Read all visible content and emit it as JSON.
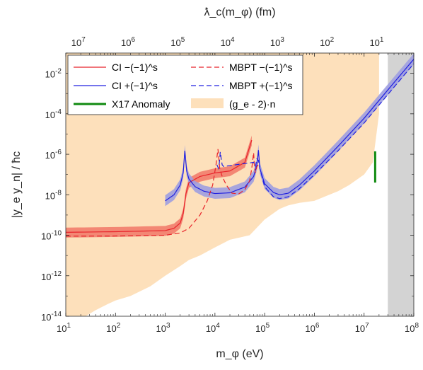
{
  "chart_data": {
    "type": "line",
    "xlabel": "m_φ (eV)",
    "ylabel": "|y_e y_n| / ħc",
    "top_xlabel": "ƛ_c(m_φ) (fm)",
    "x_scale": "log",
    "y_scale": "log",
    "xlim": [
      10,
      100000000
    ],
    "ylim": [
      1e-14,
      0.1
    ],
    "x_ticks": [
      "10^1",
      "10^2",
      "10^3",
      "10^4",
      "10^5",
      "10^6",
      "10^7",
      "10^8"
    ],
    "y_ticks": [
      "10^-14",
      "10^-12",
      "10^-10",
      "10^-8",
      "10^-6",
      "10^-4",
      "10^-2"
    ],
    "top_ticks": [
      "10^7",
      "10^6",
      "10^5",
      "10^4",
      "10^3",
      "10^2",
      "10^1"
    ],
    "legend_position": "top-left",
    "grid": false,
    "legend": {
      "ci_minus": "CI −(−1)^s",
      "ci_plus": "CI +(−1)^s",
      "x17": "X17 Anomaly",
      "mbpt_minus": "MBPT −(−1)^s",
      "mbpt_plus": "MBPT +(−1)^s",
      "ge2": "(g_e - 2)·n"
    },
    "colors": {
      "ci_minus": "#e8232a",
      "ci_plus": "#2020e0",
      "ci_minus_band": "#f27d6d",
      "ci_plus_band": "#9f9fe0",
      "x17": "#108a10",
      "ge2": "#fde0bb",
      "excluded_region": "#d3d3d3"
    },
    "series": [
      {
        "name": "CI −(−1)^s",
        "style": "solid",
        "x": [
          10,
          100,
          1000,
          1500,
          2000,
          2300,
          2500,
          2600,
          3000,
          5000,
          10000,
          20000,
          40000,
          55000
        ],
        "y": [
          1.4e-10,
          1.5e-10,
          1.7e-10,
          2.2e-10,
          4e-10,
          1.2e-09,
          5e-09,
          1.1e-08,
          4e-08,
          8e-08,
          1.2e-07,
          1.5e-07,
          4e-07,
          5e-06
        ],
        "band": [
          0.55,
          1.7
        ]
      },
      {
        "name": "CI +(−1)^s",
        "style": "solid",
        "x": [
          1000,
          1500,
          2000,
          2300,
          2480,
          2700,
          3000,
          4000,
          6000,
          10000,
          20000,
          40000,
          60000,
          70000,
          75000,
          80000,
          100000,
          150000,
          200000,
          300000,
          500000,
          1000000,
          3000000,
          10000000,
          30000000,
          100000000
        ],
        "y": [
          5e-09,
          1e-08,
          3e-08,
          1.2e-07,
          1.5e-06,
          1.5e-07,
          6e-08,
          2.5e-08,
          1.5e-08,
          1.15e-08,
          1.25e-08,
          2.4e-08,
          8e-08,
          3e-07,
          1.6e-06,
          2e-07,
          3.5e-08,
          1.3e-08,
          1e-08,
          1.2e-08,
          3e-08,
          1.5e-07,
          2.5e-06,
          6e-05,
          0.0015,
          0.05
        ],
        "band": [
          0.55,
          1.9
        ]
      },
      {
        "name": "MBPT −(−1)^s",
        "style": "dashed",
        "x": [
          10,
          100,
          1000,
          2000,
          3000,
          5000,
          7000,
          9000,
          10500,
          11500,
          12500,
          14000,
          17000,
          22000,
          30000,
          40000,
          50000,
          55000,
          60000,
          62000,
          65000,
          70000,
          75000
        ],
        "y": [
          9e-11,
          9.2e-11,
          1e-10,
          1.3e-10,
          2.2e-10,
          1e-09,
          5e-09,
          3e-08,
          3e-07,
          1.8e-06,
          2e-07,
          8e-08,
          3e-08,
          1.2e-08,
          1.1e-08,
          1.8e-08,
          5e-08,
          2e-07,
          1.2e-06,
          3e-07,
          1.2e-07,
          2.5e-07,
          3e-07
        ]
      },
      {
        "name": "MBPT +(−1)^s",
        "style": "dashed",
        "x": [
          11000,
          11800,
          12300,
          12800,
          13500,
          14000,
          15000,
          60000,
          65000,
          70000,
          75000,
          80000,
          100000,
          150000,
          200000,
          300000,
          500000,
          1000000,
          3000000,
          10000000,
          30000000,
          100000000
        ],
        "y": [
          3e-07,
          2e-07,
          4e-07,
          1.3e-06,
          5e-07,
          3e-07,
          2.5e-07,
          4e-07,
          2.5e-07,
          6e-07,
          5e-07,
          2e-07,
          2.5e-08,
          8e-09,
          6.5e-09,
          8e-09,
          2e-08,
          1e-07,
          1.5e-06,
          3.5e-05,
          0.0009,
          0.03
        ]
      },
      {
        "name": "X17 Anomaly",
        "x": [
          16700000,
          16700000
        ],
        "y": [
          4e-08,
          1.4e-06
        ]
      },
      {
        "name": "(g_e - 2)·n",
        "type": "area",
        "upper_y_edge_x": [
          10,
          20000000
        ],
        "boundary_x": [
          25,
          40,
          70,
          100,
          200,
          500,
          1000,
          2000,
          3000,
          5000,
          10000,
          20000,
          50000,
          100000,
          200000,
          300000,
          500000,
          1000000,
          2000000,
          3000000,
          5000000,
          10000000,
          15000000,
          20000000
        ],
        "boundary_y": [
          1e-14,
          2e-14,
          4e-14,
          6e-14,
          1e-13,
          3e-13,
          1e-12,
          3e-12,
          6e-12,
          1e-11,
          2.5e-11,
          6e-11,
          1e-10,
          6e-10,
          2e-09,
          3e-09,
          4e-09,
          5e-09,
          1e-08,
          1.5e-08,
          3e-08,
          1e-07,
          4e-07,
          0.0001
        ]
      }
    ],
    "excluded_region_x": [
      30000000,
      100000000
    ]
  }
}
